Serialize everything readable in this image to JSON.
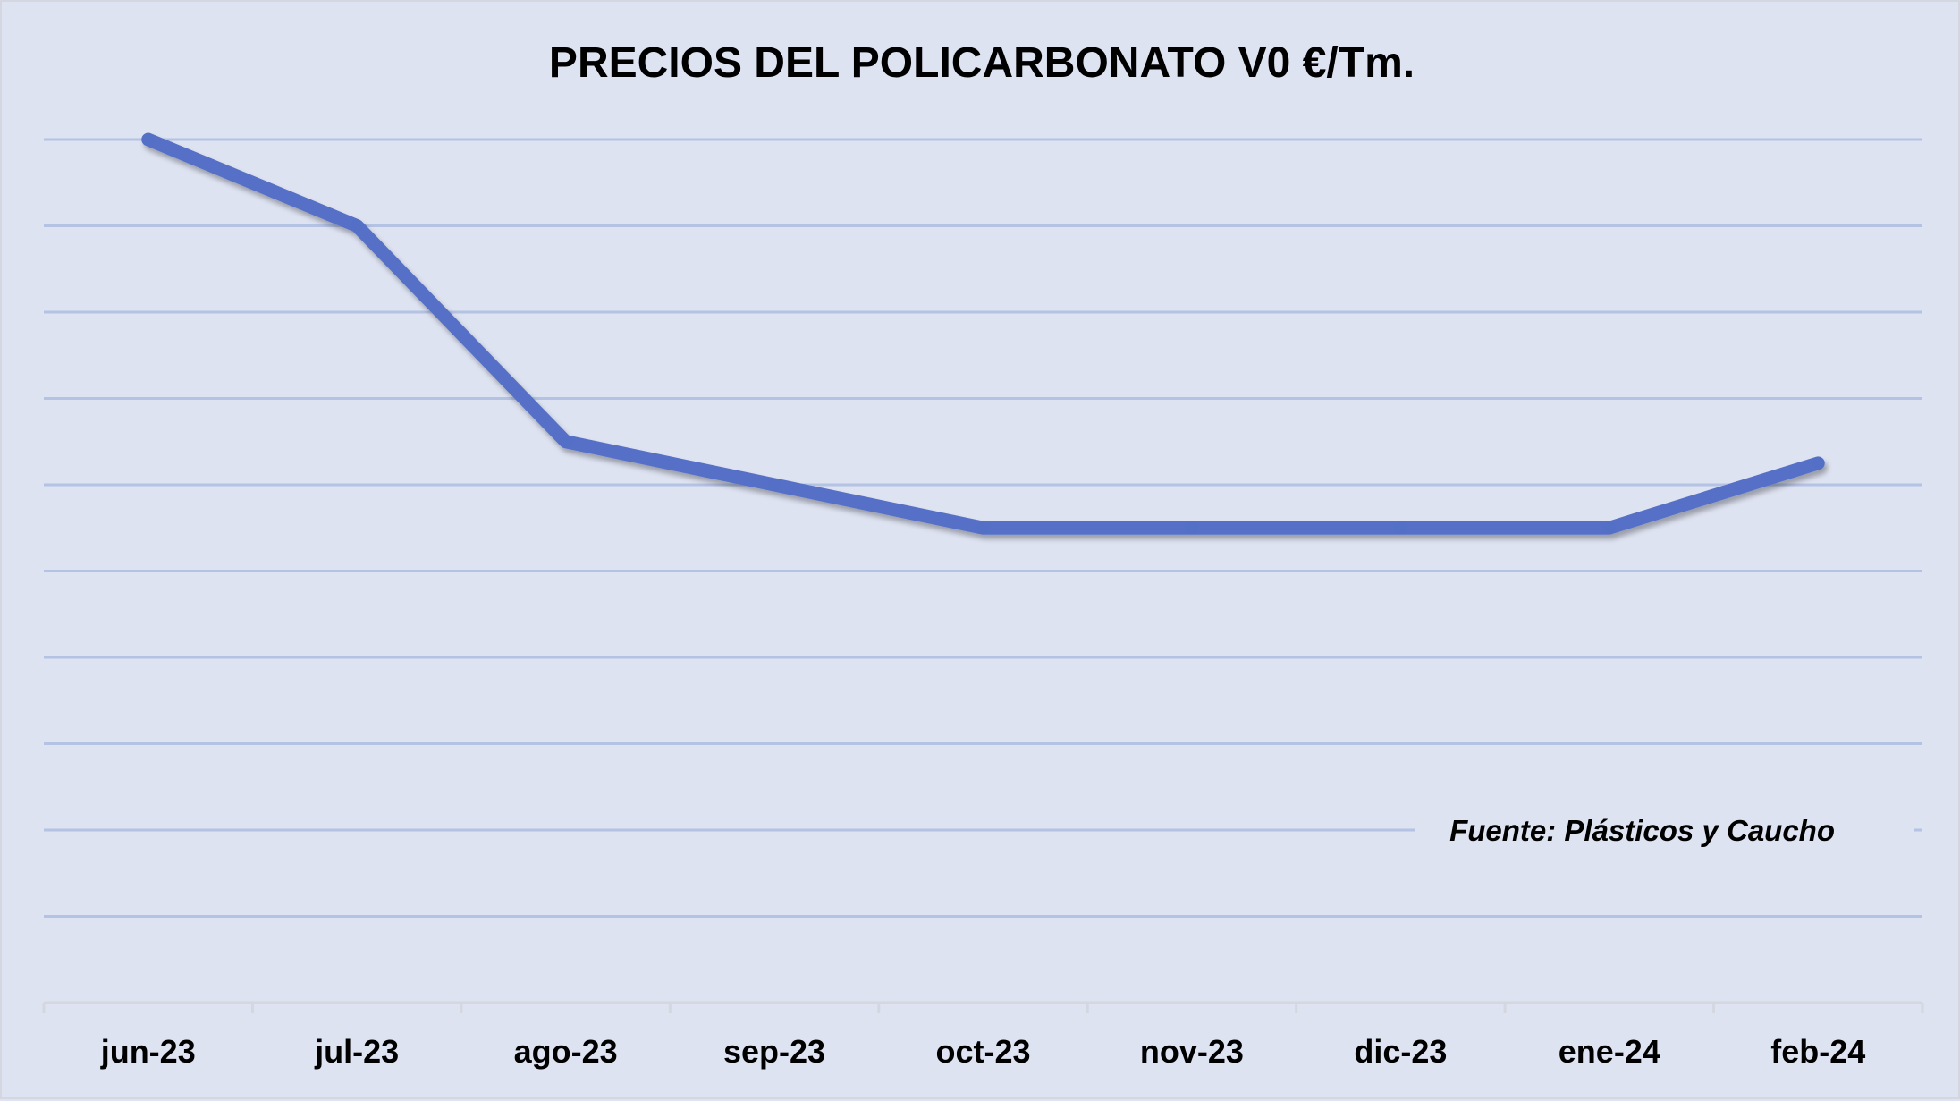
{
  "chart_data": {
    "type": "line",
    "title": "PRECIOS DEL POLICARBONATO  V0 €/Tm.",
    "categories": [
      "jun-23",
      "jul-23",
      "ago-23",
      "sep-23",
      "oct-23",
      "nov-23",
      "dic-23",
      "ene-24",
      "feb-24"
    ],
    "series": [
      {
        "values": [
          10,
          9,
          6.5,
          6,
          5.5,
          5.5,
          5.5,
          5.5,
          6.25
        ]
      }
    ],
    "ylim": [
      0,
      10
    ],
    "grid": true,
    "y_tick_labels_shown": false,
    "annotation": "Fuente: Plásticos y Caucho",
    "colors": {
      "line": "#5470c6",
      "grid": "#b4c2e4",
      "axis": "#d4d7df",
      "background": "#dee3f2"
    }
  }
}
